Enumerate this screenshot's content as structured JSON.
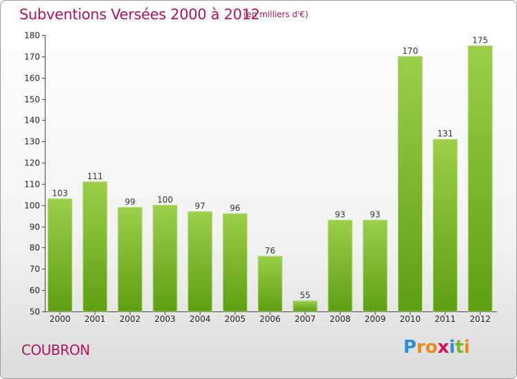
{
  "title": "Subventions Versées 2000 à 2012",
  "subtitle": "(en milliers d'€)",
  "commune": "COUBRON",
  "logo": {
    "letters": [
      "P",
      "r",
      "o",
      "x",
      "i",
      "t",
      "i"
    ],
    "colors": [
      "#2b8fd8",
      "#e88a1a",
      "#e88a1a",
      "#d4145a",
      "#2b8fd8",
      "#7ab82b",
      "#e88a1a"
    ]
  },
  "colors": {
    "bar_top": "#9ccf4a",
    "bar_bottom": "#5e9f12",
    "title": "#b0145a"
  },
  "chart_data": {
    "type": "bar",
    "categories": [
      "2000",
      "2001",
      "2002",
      "2003",
      "2004",
      "2005",
      "2006",
      "2007",
      "2008",
      "2009",
      "2010",
      "2011",
      "2012"
    ],
    "values": [
      103,
      111,
      99,
      100,
      97,
      96,
      76,
      55,
      93,
      93,
      170,
      131,
      175
    ],
    "value_labels": [
      "103",
      "111",
      "99",
      "100",
      "97",
      "96",
      "76",
      "55",
      "93",
      "93",
      "170",
      "131",
      "175"
    ],
    "yticks": [
      "50",
      "60",
      "70",
      "80",
      "90",
      "100",
      "110",
      "120",
      "130",
      "140",
      "150",
      "160",
      "170",
      "180"
    ],
    "ylim": [
      50,
      180
    ],
    "grid": false
  }
}
